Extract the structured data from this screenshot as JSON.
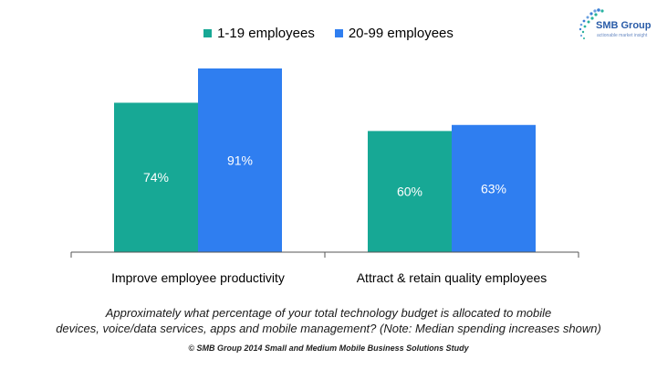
{
  "chart_data": {
    "type": "bar",
    "categories": [
      "Improve employee productivity",
      "Attract & retain quality employees"
    ],
    "series": [
      {
        "name": "1-19 employees",
        "values": [
          74,
          60
        ],
        "labels": [
          "74%",
          "60%"
        ],
        "color": "#17a895"
      },
      {
        "name": "20-99 employees",
        "values": [
          91,
          63
        ],
        "labels": [
          "91%",
          "63%"
        ],
        "color": "#2f7ef0"
      }
    ],
    "ylim": [
      0,
      100
    ],
    "grid": false,
    "legend_position": "top-center"
  },
  "logo": {
    "name": "SMB Group",
    "tagline": "actionable market insight"
  },
  "caption": {
    "line1": "Approximately what percentage of your total technology budget is allocated to mobile",
    "line2": "devices, voice/data services, apps and mobile management? (Note: Median spending increases shown)"
  },
  "copyright": "© SMB Group 2014 Small and Medium Mobile Business Solutions Study"
}
